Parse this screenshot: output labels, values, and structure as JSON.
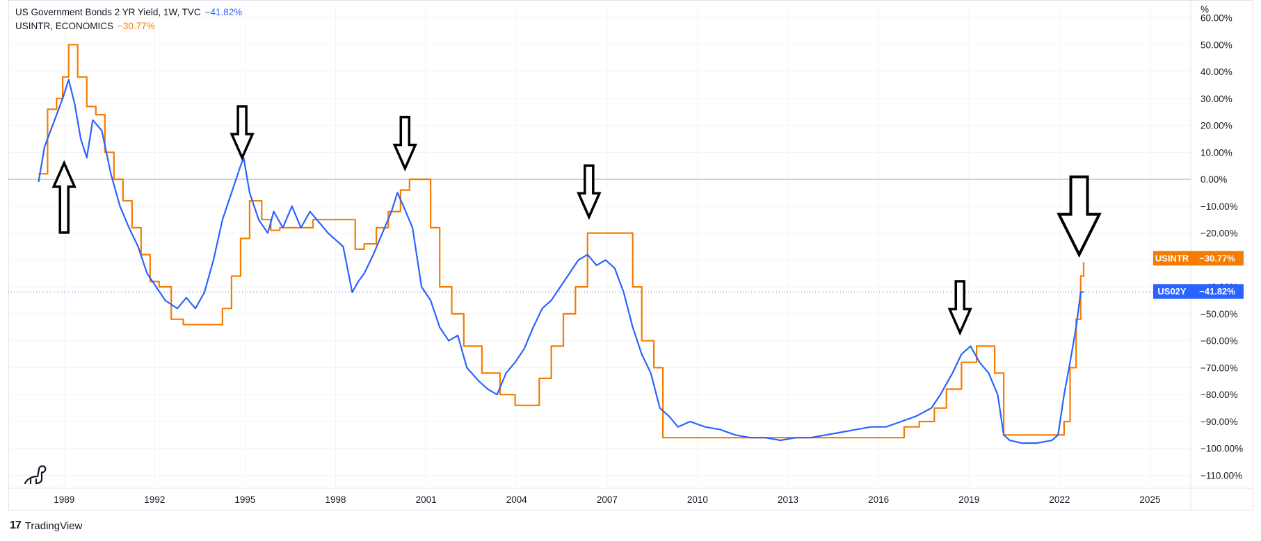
{
  "legend": [
    {
      "title": "US Government Bonds 2 YR Yield, 1W, TVC",
      "change": "−41.82%",
      "color": "#2962ff"
    },
    {
      "title": "USINTR, ECONOMICS",
      "change": "−30.77%",
      "color": "#f57c00"
    }
  ],
  "footer": {
    "brand": "TradingView"
  },
  "chart_data": {
    "type": "line",
    "title": "",
    "xlabel": "",
    "ylabel": "%",
    "x_ticks": [
      "1989",
      "1992",
      "1995",
      "1998",
      "2001",
      "2004",
      "2007",
      "2010",
      "2013",
      "2016",
      "2019",
      "2022",
      "2025"
    ],
    "y_ticks": [
      "60.00%",
      "50.00%",
      "40.00%",
      "30.00%",
      "20.00%",
      "10.00%",
      "0.00%",
      "−10.00%",
      "−20.00%",
      "−30.00%",
      "−40.00%",
      "−50.00%",
      "−60.00%",
      "−70.00%",
      "−80.00%",
      "−90.00%",
      "−100.00%",
      "−110.00%"
    ],
    "ylim": [
      -114,
      64
    ],
    "xlim": [
      1987.2,
      2026.4
    ],
    "grid": true,
    "baseline": 0,
    "series": [
      {
        "name": "US02Y",
        "color": "#2962ff",
        "last_value": "−41.82%",
        "badge_label": "US02Y",
        "x": [
          1988.2,
          1988.4,
          1988.6,
          1988.8,
          1989.0,
          1989.2,
          1989.4,
          1989.6,
          1989.8,
          1990.0,
          1990.3,
          1990.6,
          1990.9,
          1991.2,
          1991.5,
          1991.8,
          1992.1,
          1992.4,
          1992.8,
          1993.1,
          1993.4,
          1993.7,
          1994.0,
          1994.3,
          1994.6,
          1994.9,
          1995.0,
          1995.2,
          1995.5,
          1995.8,
          1996.0,
          1996.3,
          1996.6,
          1996.9,
          1997.2,
          1997.5,
          1997.8,
          1998.0,
          1998.3,
          1998.6,
          1998.8,
          1999.0,
          1999.3,
          1999.6,
          1999.9,
          2000.1,
          2000.3,
          2000.6,
          2000.9,
          2001.2,
          2001.5,
          2001.8,
          2002.1,
          2002.4,
          2002.8,
          2003.1,
          2003.4,
          2003.7,
          2004.0,
          2004.3,
          2004.6,
          2004.9,
          2005.2,
          2005.5,
          2005.8,
          2006.1,
          2006.4,
          2006.7,
          2007.0,
          2007.3,
          2007.6,
          2007.9,
          2008.2,
          2008.5,
          2008.8,
          2009.1,
          2009.4,
          2009.8,
          2010.3,
          2010.8,
          2011.3,
          2011.8,
          2012.3,
          2012.8,
          2013.3,
          2013.8,
          2014.3,
          2014.8,
          2015.3,
          2015.8,
          2016.3,
          2016.8,
          2017.3,
          2017.8,
          2018.1,
          2018.5,
          2018.8,
          2019.1,
          2019.4,
          2019.7,
          2020.0,
          2020.2,
          2020.4,
          2020.8,
          2021.3,
          2021.8,
          2022.0,
          2022.2,
          2022.4,
          2022.6,
          2022.75,
          2022.85
        ],
        "y": [
          -1,
          12,
          18,
          24,
          30,
          37,
          28,
          15,
          8,
          22,
          18,
          2,
          -10,
          -18,
          -25,
          -35,
          -40,
          -45,
          -48,
          -44,
          -48,
          -42,
          -30,
          -15,
          -5,
          5,
          8,
          -5,
          -15,
          -20,
          -12,
          -18,
          -10,
          -18,
          -12,
          -16,
          -20,
          -22,
          -25,
          -42,
          -38,
          -35,
          -28,
          -20,
          -12,
          -5,
          -10,
          -18,
          -40,
          -45,
          -55,
          -60,
          -58,
          -70,
          -75,
          -78,
          -80,
          -72,
          -68,
          -63,
          -55,
          -48,
          -45,
          -40,
          -35,
          -30,
          -28,
          -32,
          -30,
          -33,
          -42,
          -55,
          -65,
          -72,
          -85,
          -88,
          -92,
          -90,
          -92,
          -93,
          -95,
          -96,
          -96,
          -97,
          -96,
          -96,
          -95,
          -94,
          -93,
          -92,
          -92,
          -90,
          -88,
          -85,
          -80,
          -72,
          -65,
          -62,
          -68,
          -72,
          -80,
          -95,
          -97,
          -98,
          -98,
          -97,
          -95,
          -80,
          -68,
          -55,
          -42,
          -41.82
        ]
      },
      {
        "name": "USINTR",
        "color": "#f57c00",
        "last_value": "−30.77%",
        "badge_label": "USINTR",
        "x": [
          1988.2,
          1988.5,
          1988.8,
          1989.0,
          1989.2,
          1989.5,
          1989.8,
          1990.1,
          1990.4,
          1990.7,
          1991.0,
          1991.3,
          1991.6,
          1991.9,
          1992.2,
          1992.6,
          1993.0,
          1993.5,
          1994.0,
          1994.3,
          1994.6,
          1994.9,
          1995.2,
          1995.6,
          1995.9,
          1996.2,
          1996.8,
          1997.3,
          1997.8,
          1998.3,
          1998.7,
          1999.0,
          1999.4,
          1999.8,
          2000.2,
          2000.5,
          2000.9,
          2001.2,
          2001.5,
          2001.9,
          2002.3,
          2002.9,
          2003.5,
          2004.0,
          2004.4,
          2004.8,
          2005.2,
          2005.6,
          2006.0,
          2006.4,
          2007.0,
          2007.6,
          2007.9,
          2008.2,
          2008.6,
          2008.9,
          2010.0,
          2012.0,
          2014.0,
          2015.9,
          2016.9,
          2017.4,
          2017.9,
          2018.3,
          2018.8,
          2019.3,
          2019.6,
          2019.9,
          2020.2,
          2021.0,
          2022.0,
          2022.2,
          2022.4,
          2022.6,
          2022.75,
          2022.85
        ],
        "y": [
          2,
          26,
          30,
          38,
          50,
          38,
          27,
          24,
          10,
          0,
          -8,
          -18,
          -28,
          -38,
          -40,
          -52,
          -54,
          -54,
          -54,
          -48,
          -36,
          -22,
          -8,
          -15,
          -19,
          -18,
          -18,
          -15,
          -15,
          -15,
          -26,
          -24,
          -18,
          -12,
          -4,
          0,
          0,
          -18,
          -40,
          -50,
          -62,
          -72,
          -80,
          -84,
          -84,
          -74,
          -62,
          -50,
          -40,
          -20,
          -20,
          -20,
          -40,
          -60,
          -70,
          -96,
          -96,
          -96,
          -96,
          -96,
          -92,
          -90,
          -85,
          -78,
          -68,
          -62,
          -62,
          -72,
          -95,
          -95,
          -95,
          -90,
          -70,
          -52,
          -36,
          -30.77
        ]
      }
    ],
    "annotations": [
      {
        "type": "arrow",
        "direction": "up",
        "x": 1989.05,
        "y_tip": 6
      },
      {
        "type": "arrow",
        "direction": "down",
        "x": 1994.95,
        "y_tip": 8
      },
      {
        "type": "arrow",
        "direction": "down",
        "x": 2000.35,
        "y_tip": 4
      },
      {
        "type": "arrow",
        "direction": "down",
        "x": 2006.45,
        "y_tip": -14
      },
      {
        "type": "arrow",
        "direction": "down",
        "x": 2018.75,
        "y_tip": -57
      },
      {
        "type": "arrow",
        "direction": "down",
        "x": 2022.7,
        "y_tip": -28,
        "large": true
      }
    ]
  }
}
